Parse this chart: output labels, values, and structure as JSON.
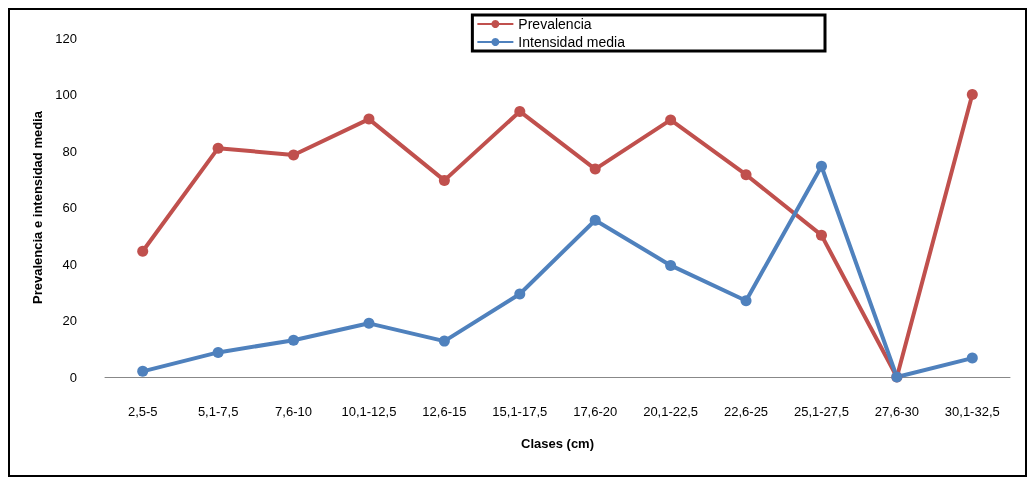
{
  "chart_data": {
    "type": "line",
    "xlabel": "Clases (cm)",
    "ylabel": "Prevalencia e intensidad media",
    "categories": [
      "2,5-5",
      "5,1-7,5",
      "7,6-10",
      "10,1-12,5",
      "12,6-15",
      "15,1-17,5",
      "17,6-20",
      "20,1-22,5",
      "22,6-25",
      "25,1-27,5",
      "27,6-30",
      "30,1-32,5"
    ],
    "series": [
      {
        "name": "Prevalencia",
        "color": "#c0504d",
        "values": [
          44.5,
          81,
          78.6,
          91.3,
          69.6,
          94,
          73.6,
          91,
          71.6,
          50.2,
          0,
          100
        ]
      },
      {
        "name": "Intensidad media",
        "color": "#4f81bd",
        "values": [
          2,
          8.7,
          13,
          19,
          12.7,
          29.4,
          55.5,
          39.5,
          27,
          74.6,
          0,
          6.7
        ]
      }
    ],
    "ylim": [
      0,
      120
    ],
    "yticks": [
      0,
      20,
      40,
      60,
      80,
      100,
      120
    ],
    "grid": false,
    "legend": "top right",
    "marker": "circle",
    "line_style": "solid"
  }
}
